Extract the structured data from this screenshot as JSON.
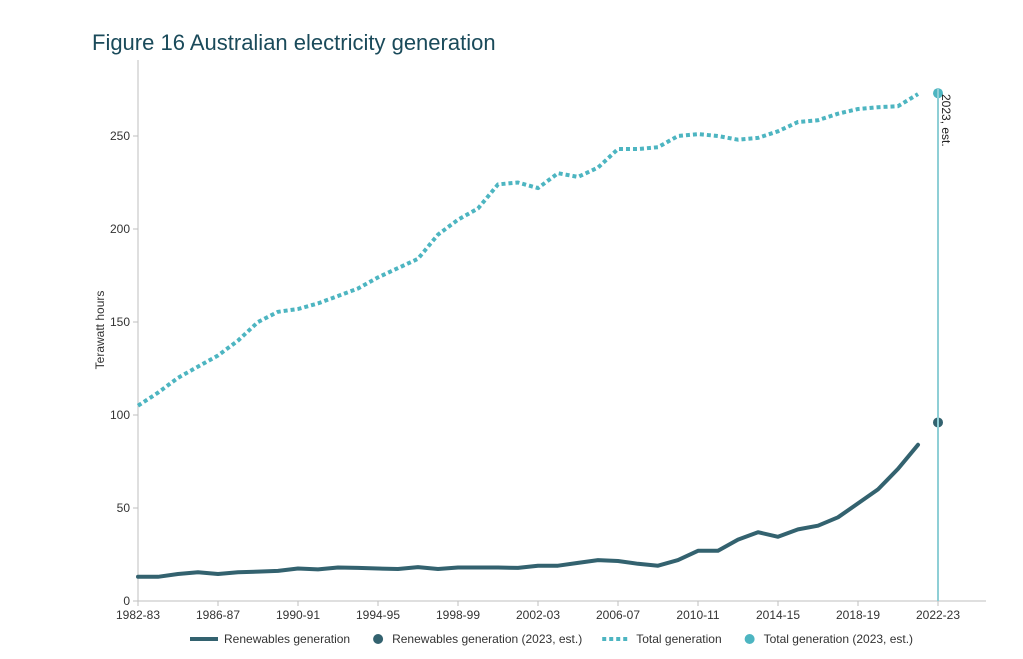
{
  "figure": {
    "title": "Figure 16 Australian electricity generation"
  },
  "chart_data": {
    "type": "line",
    "ylabel": "Terawatt hours",
    "xlabel": "",
    "ylim": [
      0,
      280
    ],
    "y_ticks": [
      0,
      50,
      100,
      150,
      200,
      250
    ],
    "grid": false,
    "legend_position": "bottom",
    "x_tick_labels": [
      "1982-83",
      "1986-87",
      "1990-91",
      "1994-95",
      "1998-99",
      "2002-03",
      "2006-07",
      "2010-11",
      "2014-15",
      "2018-19",
      "2022-23"
    ],
    "x_start_year": 1983,
    "x_end_year": 2023,
    "annotation": "2023, est.",
    "colors": {
      "renewables": "#33626f",
      "total": "#4db5c1",
      "marker_line": "#8fcfd6"
    },
    "series": [
      {
        "name": "Renewables generation",
        "style": "solid",
        "color": "#33626f",
        "x": [
          1983,
          1984,
          1985,
          1986,
          1987,
          1988,
          1989,
          1990,
          1991,
          1992,
          1993,
          1994,
          1995,
          1996,
          1997,
          1998,
          1999,
          2000,
          2001,
          2002,
          2003,
          2004,
          2005,
          2006,
          2007,
          2008,
          2009,
          2010,
          2011,
          2012,
          2013,
          2014,
          2015,
          2016,
          2017,
          2018,
          2019,
          2020,
          2021,
          2022
        ],
        "y": [
          13,
          13,
          14.5,
          15.5,
          14.5,
          15.5,
          15.8,
          16.2,
          17.5,
          17,
          18,
          17.8,
          17.5,
          17.2,
          18.2,
          17.2,
          18,
          18,
          18,
          17.8,
          19,
          19,
          20.5,
          22,
          21.5,
          20,
          19,
          22,
          27,
          27,
          33,
          37,
          34.5,
          38.5,
          40.5,
          45,
          52.5,
          60,
          71,
          84
        ]
      },
      {
        "name": "Renewables generation (2023, est.)",
        "style": "marker",
        "color": "#33626f",
        "x": [
          2023
        ],
        "y": [
          96
        ]
      },
      {
        "name": "Total generation",
        "style": "dotted",
        "color": "#4db5c1",
        "x": [
          1983,
          1984,
          1985,
          1986,
          1987,
          1988,
          1989,
          1990,
          1991,
          1992,
          1993,
          1994,
          1995,
          1996,
          1997,
          1998,
          1999,
          2000,
          2001,
          2002,
          2003,
          2004,
          2005,
          2006,
          2007,
          2008,
          2009,
          2010,
          2011,
          2012,
          2013,
          2014,
          2015,
          2016,
          2017,
          2018,
          2019,
          2020,
          2021,
          2022
        ],
        "y": [
          105,
          112,
          120,
          126,
          132,
          140,
          150,
          155.5,
          157,
          160,
          164,
          168,
          174,
          179,
          184,
          197,
          205,
          211,
          224,
          225,
          222,
          230,
          228,
          233,
          243,
          243,
          244,
          250,
          251,
          250,
          248,
          249,
          252.5,
          257.5,
          258.5,
          262,
          264.5,
          265.5,
          266,
          272.5
        ]
      },
      {
        "name": "Total generation (2023, est.)",
        "style": "marker",
        "color": "#4db5c1",
        "x": [
          2023
        ],
        "y": [
          273
        ]
      }
    ]
  }
}
